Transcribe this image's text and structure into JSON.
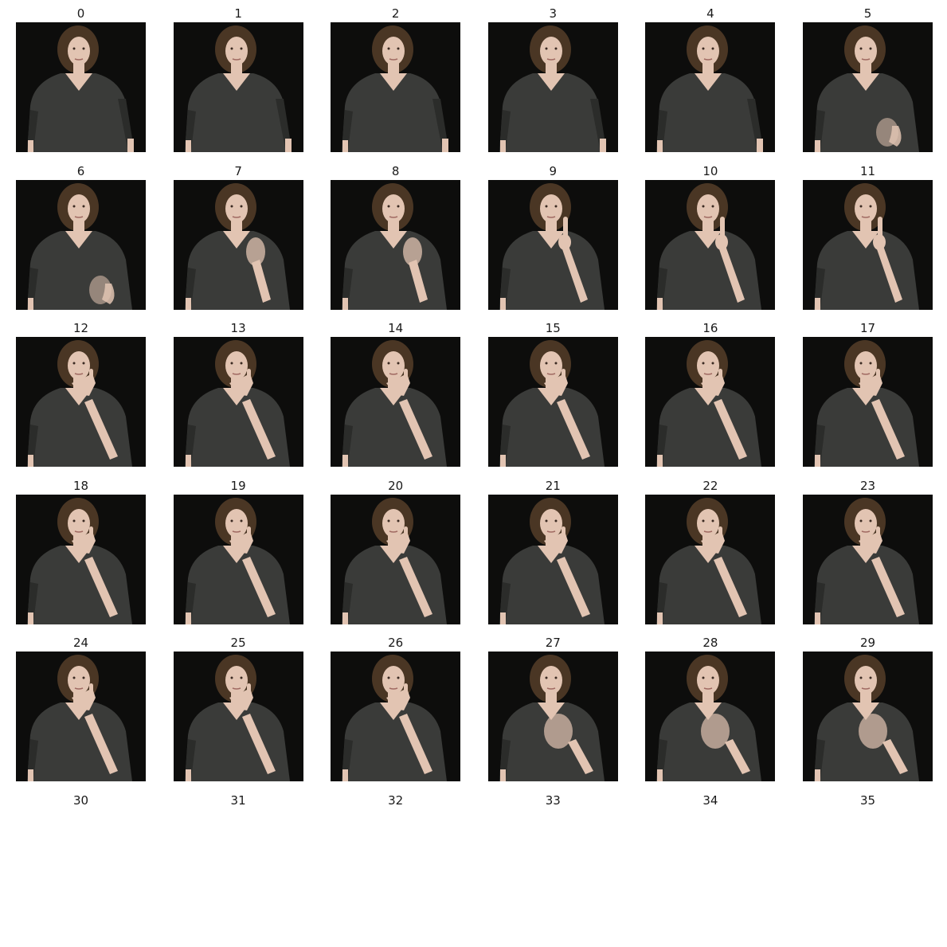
{
  "frames": [
    {
      "label": "0",
      "hand": "down",
      "has_image": true
    },
    {
      "label": "1",
      "hand": "down",
      "has_image": true
    },
    {
      "label": "2",
      "hand": "down",
      "has_image": true
    },
    {
      "label": "3",
      "hand": "down",
      "has_image": true
    },
    {
      "label": "4",
      "hand": "down",
      "has_image": true
    },
    {
      "label": "5",
      "hand": "rising",
      "has_image": true
    },
    {
      "label": "6",
      "hand": "rising",
      "has_image": true
    },
    {
      "label": "7",
      "hand": "mid",
      "has_image": true
    },
    {
      "label": "8",
      "hand": "mid",
      "has_image": true
    },
    {
      "label": "9",
      "hand": "face",
      "has_image": true
    },
    {
      "label": "10",
      "hand": "face",
      "has_image": true
    },
    {
      "label": "11",
      "hand": "face",
      "has_image": true
    },
    {
      "label": "12",
      "hand": "chin",
      "has_image": true
    },
    {
      "label": "13",
      "hand": "chin",
      "has_image": true
    },
    {
      "label": "14",
      "hand": "chin",
      "has_image": true
    },
    {
      "label": "15",
      "hand": "chin",
      "has_image": true
    },
    {
      "label": "16",
      "hand": "chin",
      "has_image": true
    },
    {
      "label": "17",
      "hand": "chin",
      "has_image": true
    },
    {
      "label": "18",
      "hand": "chin",
      "has_image": true
    },
    {
      "label": "19",
      "hand": "chin",
      "has_image": true
    },
    {
      "label": "20",
      "hand": "chin",
      "has_image": true
    },
    {
      "label": "21",
      "hand": "chin",
      "has_image": true
    },
    {
      "label": "22",
      "hand": "chin",
      "has_image": true
    },
    {
      "label": "23",
      "hand": "chin",
      "has_image": true
    },
    {
      "label": "24",
      "hand": "chin",
      "has_image": true
    },
    {
      "label": "25",
      "hand": "chin",
      "has_image": true
    },
    {
      "label": "26",
      "hand": "chin",
      "has_image": true
    },
    {
      "label": "27",
      "hand": "lowering",
      "has_image": true
    },
    {
      "label": "28",
      "hand": "lowering",
      "has_image": true
    },
    {
      "label": "29",
      "hand": "lowering",
      "has_image": true
    },
    {
      "label": "30",
      "hand": "none",
      "has_image": false
    },
    {
      "label": "31",
      "hand": "none",
      "has_image": false
    },
    {
      "label": "32",
      "hand": "none",
      "has_image": false
    },
    {
      "label": "33",
      "hand": "none",
      "has_image": false
    },
    {
      "label": "34",
      "hand": "none",
      "has_image": false
    },
    {
      "label": "35",
      "hand": "none",
      "has_image": false
    }
  ],
  "colors": {
    "background": "#0d0d0c",
    "shirt": "#3a3b39",
    "shirt_shadow": "#2b2c2a",
    "skin": "#e2c4b2",
    "hair": "#4a3624",
    "label": "#1a1a1a"
  }
}
